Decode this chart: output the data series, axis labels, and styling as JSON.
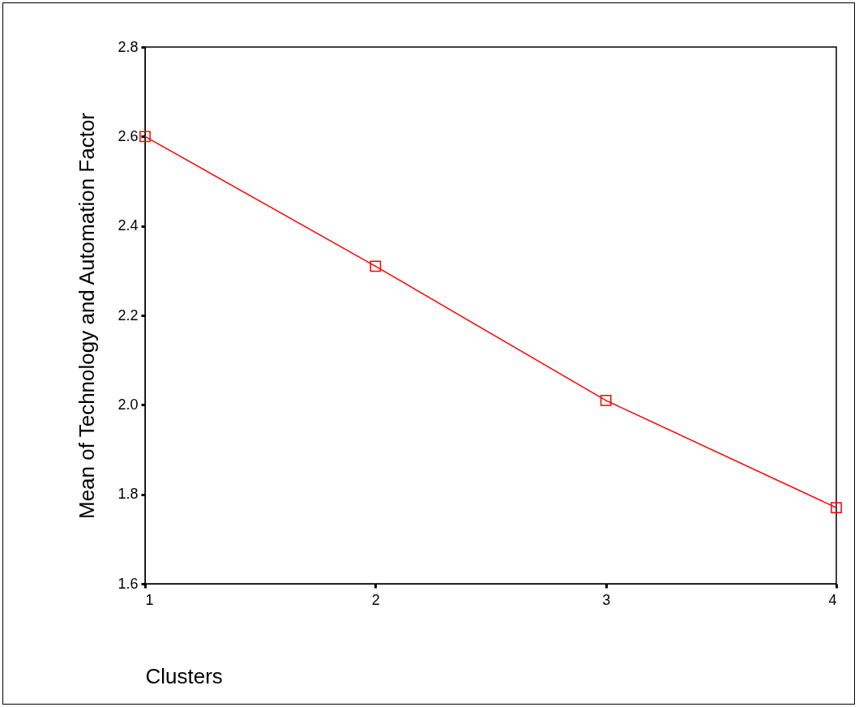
{
  "chart_data": {
    "type": "line",
    "xlabel": "Clusters",
    "ylabel": "Mean of Technology and Automation Factor",
    "x": [
      1,
      2,
      3,
      4
    ],
    "series": [
      {
        "color": "#ff0000",
        "values": [
          2.6,
          2.31,
          2.01,
          1.77
        ]
      }
    ],
    "xlim": [
      1,
      4
    ],
    "xticks": [
      1,
      2,
      3,
      4
    ],
    "ylim": [
      1.6,
      2.8
    ],
    "yticks": [
      {
        "value": 1.6,
        "label": "1.6"
      },
      {
        "value": 1.8,
        "label": "1.8"
      },
      {
        "value": 2.0,
        "label": "2.0"
      },
      {
        "value": 2.2,
        "label": "2.2"
      },
      {
        "value": 2.4,
        "label": "2.4"
      },
      {
        "value": 2.6,
        "label": "2.6"
      },
      {
        "value": 2.8,
        "label": "2.8"
      }
    ],
    "grid": false,
    "marker": "square",
    "line_style": "solid"
  }
}
